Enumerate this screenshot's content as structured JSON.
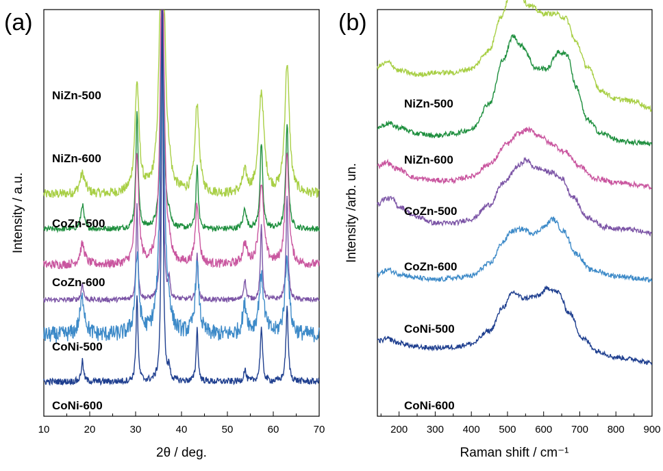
{
  "chart_data": [
    {
      "panel": "(a)",
      "type": "line",
      "xlabel": "2θ / deg.",
      "ylabel": "Intensity / a.u.",
      "xlim": [
        10,
        70
      ],
      "xticks": [
        10,
        20,
        30,
        40,
        50,
        60,
        70
      ],
      "grid": false,
      "legend": "none (labels placed under each trace)",
      "peaks_2theta": [
        18.4,
        30.3,
        35.8,
        37.3,
        43.4,
        53.8,
        57.4,
        63.0
      ],
      "series": [
        {
          "name": "NiZn-500",
          "color": "#a8cf45",
          "baseline": 0.545,
          "peak_heights": [
            0.05,
            0.27,
            0.91,
            0.03,
            0.22,
            0.05,
            0.25,
            0.32
          ],
          "widths": [
            0.7,
            0.55,
            0.55,
            0.4,
            0.55,
            0.6,
            0.7,
            0.6
          ],
          "noise": 0.012
        },
        {
          "name": "NiZn-600",
          "color": "#1e8f3e",
          "baseline": 0.46,
          "peak_heights": [
            0.06,
            0.29,
            0.89,
            0.03,
            0.15,
            0.05,
            0.21,
            0.26
          ],
          "widths": [
            0.4,
            0.3,
            0.3,
            0.3,
            0.3,
            0.4,
            0.35,
            0.35
          ],
          "noise": 0.007
        },
        {
          "name": "CoZn-500",
          "color": "#c9569f",
          "baseline": 0.372,
          "peak_heights": [
            0.05,
            0.27,
            0.87,
            0.03,
            0.15,
            0.05,
            0.2,
            0.27
          ],
          "widths": [
            0.6,
            0.45,
            0.45,
            0.35,
            0.45,
            0.55,
            0.6,
            0.5
          ],
          "noise": 0.011
        },
        {
          "name": "CoZn-600",
          "color": "#7c55a6",
          "baseline": 0.286,
          "peak_heights": [
            0.04,
            0.24,
            0.9,
            0.05,
            0.11,
            0.05,
            0.18,
            0.26
          ],
          "widths": [
            0.28,
            0.22,
            0.22,
            0.22,
            0.22,
            0.3,
            0.25,
            0.25
          ],
          "noise": 0.006
        },
        {
          "name": "CoNi-500",
          "color": "#3d8ac8",
          "baseline": 0.199,
          "peak_heights": [
            0.09,
            0.19,
            0.72,
            0.03,
            0.17,
            0.07,
            0.14,
            0.19
          ],
          "widths": [
            0.65,
            0.5,
            0.55,
            0.4,
            0.5,
            0.6,
            0.65,
            0.55
          ],
          "noise": 0.02
        },
        {
          "name": "CoNi-600",
          "color": "#1f3f8f",
          "baseline": 0.085,
          "peak_heights": [
            0.05,
            0.21,
            0.95,
            0.03,
            0.13,
            0.03,
            0.13,
            0.18
          ],
          "widths": [
            0.3,
            0.25,
            0.22,
            0.25,
            0.25,
            0.3,
            0.3,
            0.3
          ],
          "noise": 0.008
        }
      ]
    },
    {
      "panel": "(b)",
      "type": "line",
      "xlabel": "Raman shift / cm⁻¹",
      "ylabel": "Intensity /arb. un.",
      "xlim": [
        140,
        900
      ],
      "xticks": [
        200,
        300,
        400,
        500,
        600,
        700,
        800,
        900
      ],
      "grid": false,
      "legend": "none (labels placed under each trace)",
      "series": [
        {
          "name": "NiZn-500",
          "color": "#a8cf45",
          "points": [
            [
              140,
              0.86
            ],
            [
              170,
              0.87
            ],
            [
              200,
              0.85
            ],
            [
              250,
              0.84
            ],
            [
              300,
              0.845
            ],
            [
              350,
              0.845
            ],
            [
              400,
              0.855
            ],
            [
              450,
              0.9
            ],
            [
              480,
              0.98
            ],
            [
              510,
              1.04
            ],
            [
              530,
              1.04
            ],
            [
              560,
              1.01
            ],
            [
              600,
              0.99
            ],
            [
              630,
              0.99
            ],
            [
              660,
              0.98
            ],
            [
              690,
              0.92
            ],
            [
              720,
              0.86
            ],
            [
              760,
              0.8
            ],
            [
              800,
              0.78
            ],
            [
              850,
              0.775
            ],
            [
              900,
              0.755
            ]
          ]
        },
        {
          "name": "NiZn-600",
          "color": "#1e8f3e",
          "points": [
            [
              140,
              0.71
            ],
            [
              170,
              0.72
            ],
            [
              200,
              0.71
            ],
            [
              250,
              0.695
            ],
            [
              300,
              0.69
            ],
            [
              350,
              0.695
            ],
            [
              400,
              0.705
            ],
            [
              450,
              0.77
            ],
            [
              490,
              0.88
            ],
            [
              515,
              0.935
            ],
            [
              540,
              0.91
            ],
            [
              580,
              0.855
            ],
            [
              610,
              0.855
            ],
            [
              640,
              0.895
            ],
            [
              665,
              0.89
            ],
            [
              690,
              0.81
            ],
            [
              720,
              0.73
            ],
            [
              760,
              0.695
            ],
            [
              820,
              0.675
            ],
            [
              900,
              0.67
            ]
          ]
        },
        {
          "name": "CoZn-500",
          "color": "#c9569f",
          "points": [
            [
              140,
              0.615
            ],
            [
              165,
              0.625
            ],
            [
              190,
              0.61
            ],
            [
              250,
              0.585
            ],
            [
              300,
              0.58
            ],
            [
              350,
              0.58
            ],
            [
              400,
              0.59
            ],
            [
              450,
              0.62
            ],
            [
              500,
              0.67
            ],
            [
              530,
              0.695
            ],
            [
              555,
              0.705
            ],
            [
              590,
              0.69
            ],
            [
              620,
              0.67
            ],
            [
              660,
              0.65
            ],
            [
              700,
              0.615
            ],
            [
              740,
              0.585
            ],
            [
              800,
              0.575
            ],
            [
              900,
              0.565
            ]
          ]
        },
        {
          "name": "CoZn-600",
          "color": "#7c55a6",
          "points": [
            [
              140,
              0.52
            ],
            [
              160,
              0.535
            ],
            [
              180,
              0.535
            ],
            [
              200,
              0.515
            ],
            [
              250,
              0.49
            ],
            [
              300,
              0.475
            ],
            [
              350,
              0.475
            ],
            [
              400,
              0.485
            ],
            [
              450,
              0.52
            ],
            [
              490,
              0.575
            ],
            [
              530,
              0.615
            ],
            [
              550,
              0.63
            ],
            [
              580,
              0.61
            ],
            [
              620,
              0.6
            ],
            [
              650,
              0.585
            ],
            [
              680,
              0.54
            ],
            [
              720,
              0.49
            ],
            [
              770,
              0.465
            ],
            [
              830,
              0.46
            ],
            [
              900,
              0.45
            ]
          ]
        },
        {
          "name": "CoNi-500",
          "color": "#3d8ac8",
          "points": [
            [
              140,
              0.35
            ],
            [
              170,
              0.36
            ],
            [
              200,
              0.35
            ],
            [
              250,
              0.34
            ],
            [
              300,
              0.335
            ],
            [
              350,
              0.34
            ],
            [
              400,
              0.345
            ],
            [
              450,
              0.375
            ],
            [
              490,
              0.43
            ],
            [
              510,
              0.455
            ],
            [
              540,
              0.46
            ],
            [
              575,
              0.45
            ],
            [
              600,
              0.465
            ],
            [
              625,
              0.485
            ],
            [
              655,
              0.455
            ],
            [
              690,
              0.4
            ],
            [
              730,
              0.36
            ],
            [
              800,
              0.345
            ],
            [
              900,
              0.335
            ]
          ]
        },
        {
          "name": "CoNi-600",
          "color": "#1f3f8f",
          "points": [
            [
              140,
              0.185
            ],
            [
              170,
              0.19
            ],
            [
              200,
              0.18
            ],
            [
              250,
              0.17
            ],
            [
              300,
              0.168
            ],
            [
              350,
              0.17
            ],
            [
              400,
              0.178
            ],
            [
              450,
              0.21
            ],
            [
              490,
              0.27
            ],
            [
              515,
              0.305
            ],
            [
              545,
              0.29
            ],
            [
              580,
              0.295
            ],
            [
              615,
              0.315
            ],
            [
              640,
              0.305
            ],
            [
              670,
              0.255
            ],
            [
              710,
              0.19
            ],
            [
              750,
              0.16
            ],
            [
              800,
              0.145
            ],
            [
              850,
              0.14
            ],
            [
              900,
              0.13
            ]
          ]
        }
      ]
    }
  ]
}
